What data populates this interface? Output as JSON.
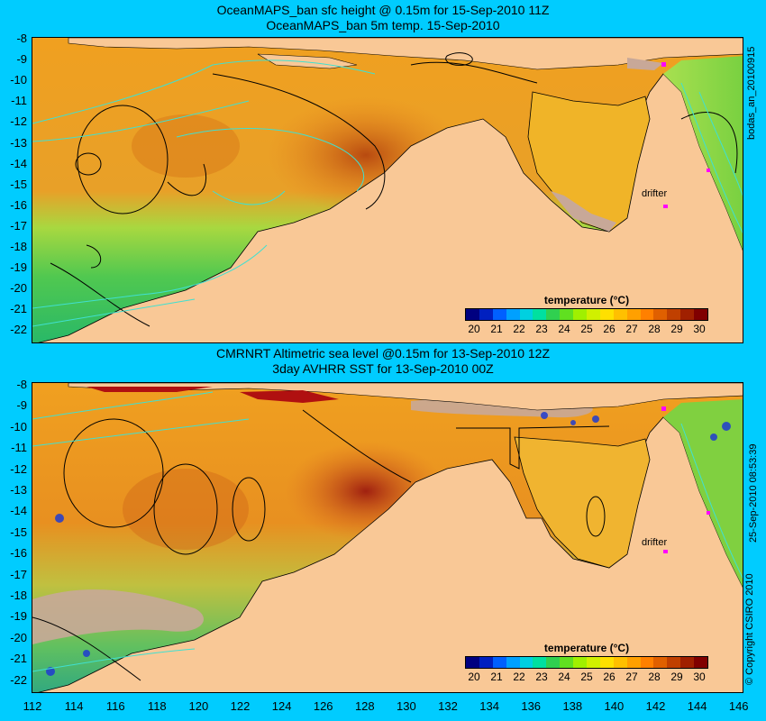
{
  "top_panel": {
    "title_line1": "OceanMAPS_ban sfc height @ 0.15m for 15-Sep-2010 11Z",
    "title_line2": "OceanMAPS_ban 5m temp. 15-Sep-2010",
    "side_label": "bodas_an_20100915",
    "drifter_label": "drifter",
    "colorbar_title": "temperature (°C)"
  },
  "bottom_panel": {
    "title_line1": "CMRNRT Altimetric sea level  @0.15m  for 13-Sep-2010 12Z",
    "title_line2": "3day AVHRR SST for 13-Sep-2010 00Z",
    "side_label": "25-Sep-2010 08:53:39",
    "copyright": "© Copyright CSIRO 2010",
    "drifter_label": "drifter",
    "colorbar_title": "temperature (°C)"
  },
  "y_axis_labels": [
    "-8",
    "-9",
    "-10",
    "-11",
    "-12",
    "-13",
    "-14",
    "-15",
    "-16",
    "-17",
    "-18",
    "-19",
    "-20",
    "-21",
    "-22"
  ],
  "x_axis_labels": [
    "112",
    "114",
    "116",
    "118",
    "120",
    "122",
    "124",
    "126",
    "128",
    "130",
    "132",
    "134",
    "136",
    "138",
    "140",
    "142",
    "144",
    "146"
  ],
  "colorbar_ticks": [
    "20",
    "21",
    "22",
    "23",
    "24",
    "25",
    "26",
    "27",
    "28",
    "29",
    "30"
  ],
  "colors": {
    "background": "#00ccff",
    "land": "#f9c896",
    "no_data": "#c8a898",
    "contour_black": "#000000",
    "contour_cyan": "#40e0d0",
    "drifter": "#ff00ff"
  },
  "colorbar_colors": [
    "#000080",
    "#0020c0",
    "#0060ff",
    "#00a0ff",
    "#00d0e0",
    "#00e0a0",
    "#30d050",
    "#60e020",
    "#a0f000",
    "#d0f000",
    "#ffe000",
    "#ffc000",
    "#ffa000",
    "#ff8000",
    "#e06000",
    "#c04000",
    "#a02000",
    "#800000"
  ]
}
